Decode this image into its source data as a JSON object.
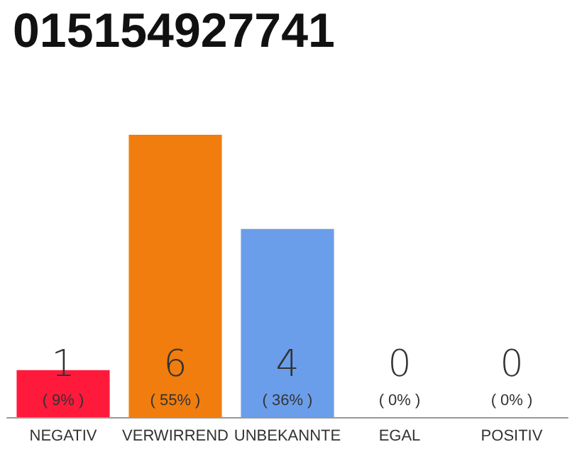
{
  "chart_data": {
    "type": "bar",
    "title": "015154927741",
    "categories": [
      "NEGATIV",
      "VERWIRREND",
      "UNBEKANNTE",
      "EGAL",
      "POSITIV"
    ],
    "values": [
      1,
      6,
      4,
      0,
      0
    ],
    "colors": [
      "#ff1a3c",
      "#f07d0d",
      "#6b9eea",
      "#cccccc",
      "#cccccc"
    ],
    "data_labels": true,
    "annotations": [
      "( 9% )",
      "( 55% )",
      "( 36% )",
      "( 0% )",
      "( 0% )"
    ],
    "tick_labels": "x",
    "grid": false
  }
}
